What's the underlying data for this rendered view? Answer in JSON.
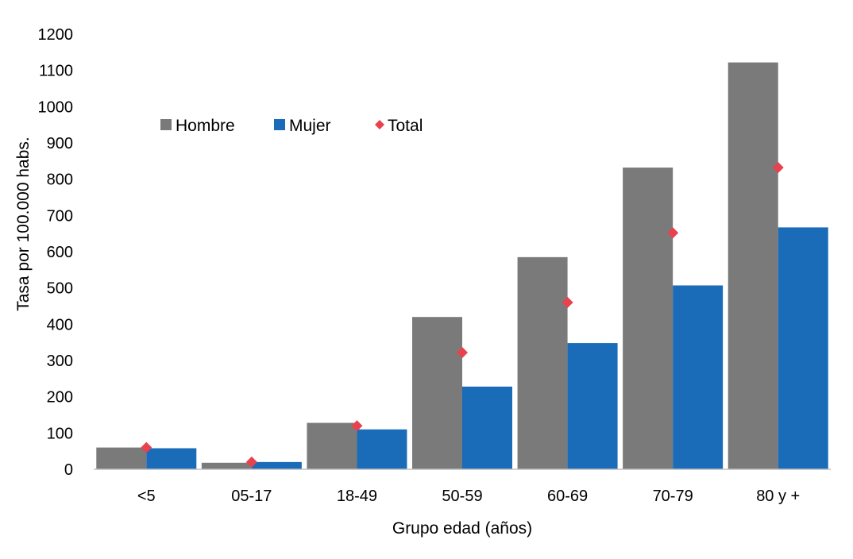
{
  "chart_data": {
    "type": "bar",
    "xlabel": "Grupo edad (años)",
    "ylabel": "Tasa por 100.000 habs.",
    "ylim": [
      0,
      1200
    ],
    "yticks": [
      "0",
      "100",
      "200",
      "300",
      "400",
      "500",
      "600",
      "700",
      "800",
      "900",
      "1000",
      "1100",
      "1200"
    ],
    "categories": [
      "<5",
      "05-17",
      "18-49",
      "50-59",
      "60-69",
      "70-79",
      "80 y +"
    ],
    "series": [
      {
        "name": "Hombre",
        "kind": "bar",
        "color": "#7a7a7a",
        "values": [
          60,
          18,
          128,
          420,
          585,
          832,
          1122
        ]
      },
      {
        "name": "Mujer",
        "kind": "bar",
        "color": "#1a6bb8",
        "values": [
          58,
          20,
          110,
          228,
          348,
          507,
          667
        ]
      },
      {
        "name": "Total",
        "kind": "marker",
        "marker": "diamond",
        "color": "#e8424f",
        "values": [
          60,
          20,
          120,
          322,
          460,
          652,
          832
        ]
      }
    ],
    "legend_position": "top-left",
    "grid": false
  }
}
